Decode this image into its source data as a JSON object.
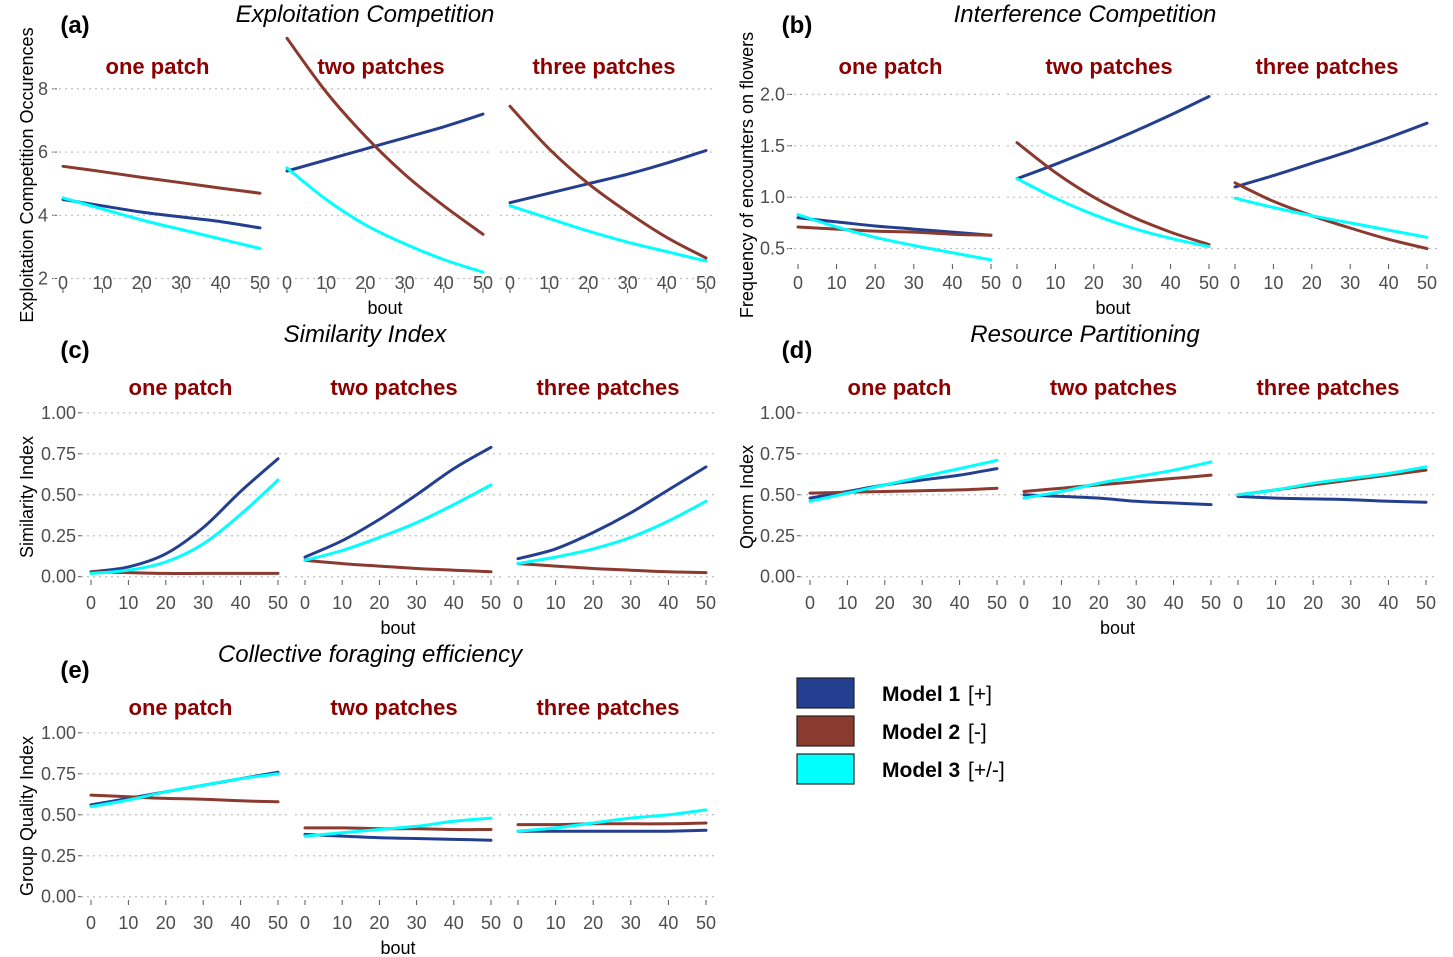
{
  "figure": {
    "strip_color": "#8b0000",
    "grid_color": "#bdbdbd",
    "legend": [
      {
        "label": "Model 1",
        "sign": "[+]",
        "color": "#243f8f"
      },
      {
        "label": "Model 2",
        "sign": "[-]",
        "color": "#8b3a2f"
      },
      {
        "label": "Model 3",
        "sign": "[+/-]",
        "color": "#00ffff"
      }
    ]
  },
  "chart_data": [
    {
      "tag": "(a)",
      "title": "Exploitation Competition",
      "type": "line",
      "xlabel": "bout",
      "ylabel": "Exploitation Competition Occurences",
      "xlim": [
        0,
        50
      ],
      "xticks": [
        0,
        10,
        20,
        30,
        40,
        50
      ],
      "ylim": [
        1.7,
        10.4
      ],
      "yticks": [
        2,
        4,
        6,
        8
      ],
      "ytick_labels": [
        "2",
        "4",
        "6",
        "8"
      ],
      "facets": [
        "one patch",
        "two patches",
        "three patches"
      ],
      "x": [
        0,
        10,
        20,
        30,
        40,
        50
      ],
      "series": [
        {
          "name": "Model 1",
          "color": "#243f8f",
          "values": [
            [
              4.5,
              4.3,
              4.1,
              3.95,
              3.8,
              3.6
            ],
            [
              5.4,
              5.75,
              6.1,
              6.45,
              6.8,
              7.2
            ],
            [
              4.4,
              4.7,
              5.0,
              5.3,
              5.65,
              6.05
            ]
          ]
        },
        {
          "name": "Model 2",
          "color": "#8b3a2f",
          "values": [
            [
              5.55,
              5.38,
              5.2,
              5.03,
              4.86,
              4.7
            ],
            [
              9.6,
              7.9,
              6.5,
              5.3,
              4.3,
              3.4
            ],
            [
              7.45,
              6.1,
              5.0,
              4.1,
              3.3,
              2.65
            ]
          ]
        },
        {
          "name": "Model 3",
          "color": "#00ffff",
          "values": [
            [
              4.55,
              4.2,
              3.85,
              3.55,
              3.25,
              2.95
            ],
            [
              5.5,
              4.5,
              3.7,
              3.1,
              2.6,
              2.2
            ],
            [
              4.3,
              3.9,
              3.5,
              3.15,
              2.85,
              2.55
            ]
          ]
        }
      ]
    },
    {
      "tag": "(b)",
      "title": "Interference Competition",
      "type": "line",
      "xlabel": "bout",
      "ylabel": "Frequency of encounters on flowers",
      "xlim": [
        0,
        50
      ],
      "xticks": [
        0,
        10,
        20,
        30,
        40,
        50
      ],
      "ylim": [
        0.35,
        2.5
      ],
      "yticks": [
        0.5,
        1.0,
        1.5,
        2.0
      ],
      "ytick_labels": [
        "0.5",
        "1.0",
        "1.5",
        "2.0"
      ],
      "facets": [
        "one patch",
        "two patches",
        "three patches"
      ],
      "x": [
        0,
        10,
        20,
        30,
        40,
        50
      ],
      "series": [
        {
          "name": "Model 1",
          "color": "#243f8f",
          "values": [
            [
              0.8,
              0.76,
              0.72,
              0.69,
              0.66,
              0.63
            ],
            [
              1.18,
              1.32,
              1.47,
              1.63,
              1.8,
              1.98
            ],
            [
              1.1,
              1.21,
              1.33,
              1.45,
              1.58,
              1.72
            ]
          ]
        },
        {
          "name": "Model 2",
          "color": "#8b3a2f",
          "values": [
            [
              0.71,
              0.69,
              0.67,
              0.66,
              0.64,
              0.63
            ],
            [
              1.53,
              1.24,
              1.0,
              0.81,
              0.66,
              0.54
            ],
            [
              1.14,
              0.96,
              0.82,
              0.7,
              0.59,
              0.5
            ]
          ]
        },
        {
          "name": "Model 3",
          "color": "#00ffff",
          "values": [
            [
              0.83,
              0.71,
              0.61,
              0.53,
              0.46,
              0.39
            ],
            [
              1.18,
              0.99,
              0.83,
              0.7,
              0.6,
              0.52
            ],
            [
              0.99,
              0.9,
              0.82,
              0.75,
              0.68,
              0.61
            ]
          ]
        }
      ]
    },
    {
      "tag": "(c)",
      "title": "Similarity Index",
      "type": "line",
      "xlabel": "bout",
      "ylabel": "Similarity Index",
      "xlim": [
        0,
        50
      ],
      "xticks": [
        0,
        10,
        20,
        30,
        40,
        50
      ],
      "ylim": [
        -0.02,
        1.06
      ],
      "yticks": [
        0,
        0.25,
        0.5,
        0.75,
        1.0
      ],
      "ytick_labels": [
        "0.00",
        "0.25",
        "0.50",
        "0.75",
        "1.00"
      ],
      "facets": [
        "one patch",
        "two patches",
        "three patches"
      ],
      "x": [
        0,
        10,
        20,
        30,
        40,
        50
      ],
      "series": [
        {
          "name": "Model 1",
          "color": "#243f8f",
          "values": [
            [
              0.03,
              0.06,
              0.14,
              0.3,
              0.52,
              0.72
            ],
            [
              0.12,
              0.22,
              0.35,
              0.5,
              0.66,
              0.79
            ],
            [
              0.11,
              0.17,
              0.27,
              0.39,
              0.53,
              0.67
            ]
          ]
        },
        {
          "name": "Model 2",
          "color": "#8b3a2f",
          "values": [
            [
              0.03,
              0.025,
              0.02,
              0.02,
              0.02,
              0.02
            ],
            [
              0.1,
              0.08,
              0.065,
              0.05,
              0.04,
              0.03
            ],
            [
              0.08,
              0.065,
              0.05,
              0.04,
              0.03,
              0.025
            ]
          ]
        },
        {
          "name": "Model 3",
          "color": "#00ffff",
          "values": [
            [
              0.02,
              0.04,
              0.09,
              0.2,
              0.38,
              0.59
            ],
            [
              0.1,
              0.16,
              0.24,
              0.33,
              0.44,
              0.56
            ],
            [
              0.08,
              0.12,
              0.17,
              0.24,
              0.34,
              0.46
            ]
          ]
        }
      ]
    },
    {
      "tag": "(d)",
      "title": "Resource Partitioning",
      "type": "line",
      "xlabel": "bout",
      "ylabel": "Qnorm Index",
      "xlim": [
        0,
        50
      ],
      "xticks": [
        0,
        10,
        20,
        30,
        40,
        50
      ],
      "ylim": [
        -0.02,
        1.06
      ],
      "yticks": [
        0,
        0.25,
        0.5,
        0.75,
        1.0
      ],
      "ytick_labels": [
        "0.00",
        "0.25",
        "0.50",
        "0.75",
        "1.00"
      ],
      "facets": [
        "one patch",
        "two patches",
        "three patches"
      ],
      "x": [
        0,
        10,
        20,
        30,
        40,
        50
      ],
      "series": [
        {
          "name": "Model 1",
          "color": "#243f8f",
          "values": [
            [
              0.48,
              0.52,
              0.56,
              0.59,
              0.62,
              0.66
            ],
            [
              0.5,
              0.49,
              0.48,
              0.46,
              0.45,
              0.44
            ],
            [
              0.49,
              0.48,
              0.475,
              0.47,
              0.46,
              0.455
            ]
          ]
        },
        {
          "name": "Model 2",
          "color": "#8b3a2f",
          "values": [
            [
              0.51,
              0.515,
              0.52,
              0.525,
              0.53,
              0.54
            ],
            [
              0.52,
              0.54,
              0.56,
              0.58,
              0.6,
              0.62
            ],
            [
              0.5,
              0.53,
              0.56,
              0.59,
              0.62,
              0.65
            ]
          ]
        },
        {
          "name": "Model 3",
          "color": "#00ffff",
          "values": [
            [
              0.46,
              0.51,
              0.56,
              0.61,
              0.66,
              0.71
            ],
            [
              0.48,
              0.52,
              0.57,
              0.61,
              0.65,
              0.7
            ],
            [
              0.5,
              0.53,
              0.57,
              0.6,
              0.63,
              0.67
            ]
          ]
        }
      ]
    },
    {
      "tag": "(e)",
      "title": "Collective foraging efficiency",
      "type": "line",
      "xlabel": "bout",
      "ylabel": "Group Quality Index",
      "xlim": [
        0,
        50
      ],
      "xticks": [
        0,
        10,
        20,
        30,
        40,
        50
      ],
      "ylim": [
        -0.02,
        1.06
      ],
      "yticks": [
        0,
        0.25,
        0.5,
        0.75,
        1.0
      ],
      "ytick_labels": [
        "0.00",
        "0.25",
        "0.50",
        "0.75",
        "1.00"
      ],
      "facets": [
        "one patch",
        "two patches",
        "three patches"
      ],
      "x": [
        0,
        10,
        20,
        30,
        40,
        50
      ],
      "series": [
        {
          "name": "Model 1",
          "color": "#243f8f",
          "values": [
            [
              0.56,
              0.6,
              0.64,
              0.68,
              0.72,
              0.76
            ],
            [
              0.38,
              0.37,
              0.36,
              0.355,
              0.35,
              0.345
            ],
            [
              0.4,
              0.4,
              0.4,
              0.4,
              0.4,
              0.405
            ]
          ]
        },
        {
          "name": "Model 2",
          "color": "#8b3a2f",
          "values": [
            [
              0.62,
              0.61,
              0.6,
              0.595,
              0.585,
              0.58
            ],
            [
              0.42,
              0.42,
              0.415,
              0.415,
              0.41,
              0.41
            ],
            [
              0.44,
              0.44,
              0.445,
              0.445,
              0.445,
              0.45
            ]
          ]
        },
        {
          "name": "Model 3",
          "color": "#00ffff",
          "values": [
            [
              0.55,
              0.59,
              0.64,
              0.68,
              0.72,
              0.75
            ],
            [
              0.37,
              0.39,
              0.41,
              0.43,
              0.46,
              0.48
            ],
            [
              0.4,
              0.42,
              0.45,
              0.48,
              0.5,
              0.53
            ]
          ]
        }
      ]
    }
  ]
}
